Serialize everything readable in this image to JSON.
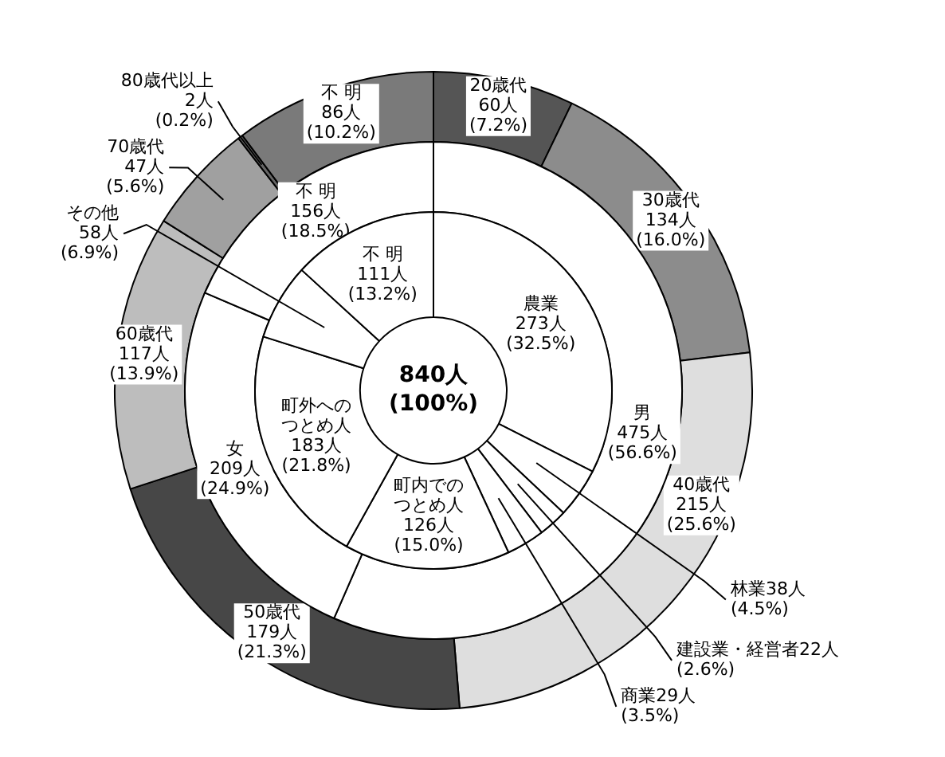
{
  "chart_data": [
    {
      "type": "donut",
      "categories": [
        "農業",
        "林業",
        "建設業・経営者",
        "商業",
        "町内でのつとめ人",
        "町外へのつとめ人",
        "その他",
        "不 明"
      ],
      "values": [
        273,
        38,
        22,
        29,
        126,
        183,
        58,
        111
      ],
      "colors": [
        "#ffffff",
        "#ffffff",
        "#ffffff",
        "#ffffff",
        "#ffffff",
        "#ffffff",
        "#ffffff",
        "#ffffff"
      ],
      "value_labels": [
        "273人\n(32.5%)",
        "38人\n(4.5%)",
        "22人\n(2.6%)",
        "29人\n(3.5%)",
        "126人\n(15.0%)",
        "183人\n(21.8%)",
        "58人\n(6.9%)",
        "111人\n(13.2%)"
      ],
      "annotations": [
        "840人\n(100%)"
      ]
    },
    {
      "type": "donut",
      "categories": [
        "男",
        "女",
        "不 明"
      ],
      "values": [
        475,
        209,
        156
      ],
      "colors": [
        "#ffffff",
        "#ffffff",
        "#ffffff"
      ],
      "value_labels": [
        "475人\n(56.6%)",
        "209人\n(24.9%)",
        "156人\n(18.5%)"
      ]
    },
    {
      "type": "donut",
      "categories": [
        "20歳代",
        "30歳代",
        "40歳代",
        "50歳代",
        "60歳代",
        "70歳代",
        "80歳代以上",
        "不 明"
      ],
      "values": [
        60,
        134,
        215,
        179,
        117,
        47,
        2,
        86
      ],
      "colors": [
        "#555555",
        "#8c8c8c",
        "#dedede",
        "#474747",
        "#bdbdbd",
        "#a0a0a0",
        "#666666",
        "#7a7a7a"
      ],
      "value_labels": [
        "60人\n(7.2%)",
        "134人\n(16.0%)",
        "215人\n(25.6%)",
        "179人\n(21.3%)",
        "117人\n(13.9%)",
        "47人\n(5.6%)",
        "2人\n(0.2%)",
        "86人\n(10.2%)"
      ]
    }
  ]
}
